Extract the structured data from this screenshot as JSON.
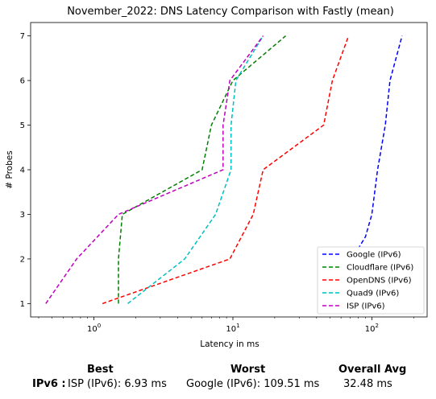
{
  "chart_data": {
    "type": "line",
    "title": "November_2022: DNS Latency Comparison with Fastly (mean)",
    "xlabel": "Latency in ms",
    "ylabel": "# Probes",
    "xscale": "log",
    "xlim": [
      0.35,
      250
    ],
    "ylim": [
      0.7,
      7.3
    ],
    "x_ticks": [
      1,
      10,
      100
    ],
    "x_tick_labels": [
      "10^0",
      "10^1",
      "10^2"
    ],
    "y_ticks": [
      1,
      2,
      3,
      4,
      5,
      6,
      7
    ],
    "legend_position": "lower-right",
    "series": [
      {
        "name": "Google (IPv6)",
        "color": "#0000ff",
        "points": [
          [
            45,
            1
          ],
          [
            58,
            1.5
          ],
          [
            72,
            2
          ],
          [
            90,
            2.5
          ],
          [
            100,
            3
          ],
          [
            110,
            4
          ],
          [
            125,
            5
          ],
          [
            135,
            6
          ],
          [
            165,
            7
          ]
        ]
      },
      {
        "name": "Cloudflare (IPv6)",
        "color": "#008000",
        "points": [
          [
            1.5,
            1
          ],
          [
            1.5,
            2
          ],
          [
            1.6,
            3
          ],
          [
            6,
            4
          ],
          [
            7,
            5
          ],
          [
            10,
            6
          ],
          [
            24,
            7
          ]
        ]
      },
      {
        "name": "OpenDNS (IPv6)",
        "color": "#ff0000",
        "points": [
          [
            1.15,
            1
          ],
          [
            9.5,
            2
          ],
          [
            14,
            3
          ],
          [
            16.5,
            4
          ],
          [
            45,
            5
          ],
          [
            52,
            6
          ],
          [
            68,
            7
          ]
        ]
      },
      {
        "name": "Quad9 (IPv6)",
        "color": "#00bfbf",
        "points": [
          [
            1.75,
            1
          ],
          [
            4.5,
            2
          ],
          [
            7.5,
            3
          ],
          [
            9.7,
            4
          ],
          [
            9.7,
            5
          ],
          [
            10.5,
            6
          ],
          [
            16.5,
            7
          ]
        ]
      },
      {
        "name": "ISP (IPv6)",
        "color": "#bf00bf",
        "points": [
          [
            0.45,
            1
          ],
          [
            0.75,
            2
          ],
          [
            1.5,
            3
          ],
          [
            8.5,
            4
          ],
          [
            8.5,
            5
          ],
          [
            9.5,
            6
          ],
          [
            16.5,
            7
          ]
        ]
      }
    ]
  },
  "summary": {
    "headers": {
      "best": "Best",
      "worst": "Worst",
      "avg": "Overall Avg"
    },
    "row_label": "IPv6 :",
    "best": "ISP (IPv6): 6.93 ms",
    "worst": "Google (IPv6): 109.51 ms",
    "avg": "32.48 ms"
  }
}
